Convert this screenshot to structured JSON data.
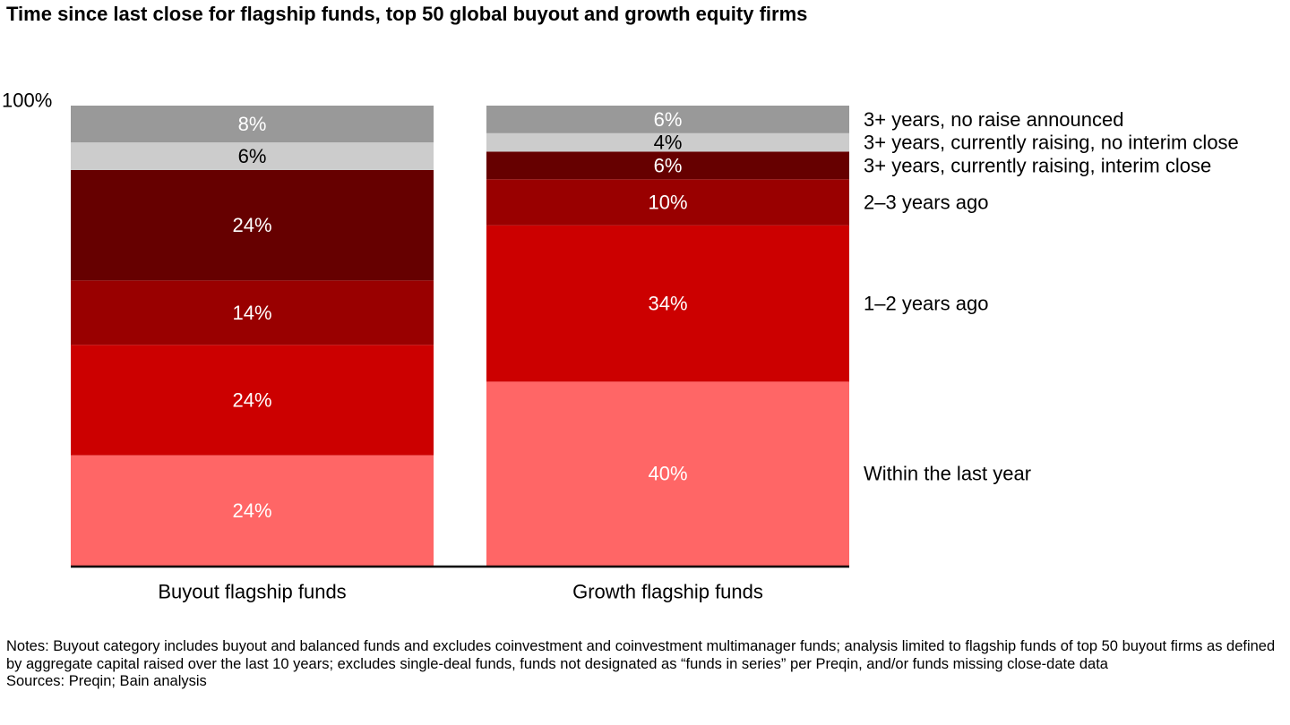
{
  "title": "Time since last close for flagship funds, top 50 global buyout and growth equity firms",
  "chart_data": {
    "type": "bar",
    "stacked": true,
    "percent": true,
    "ylim": [
      0,
      100
    ],
    "y_tick_labels": [
      "100%"
    ],
    "categories": [
      "Buyout flagship funds",
      "Growth flagship funds"
    ],
    "series": [
      {
        "name": "Within the last year",
        "values": [
          24,
          40
        ],
        "labels": [
          "24%",
          "40%"
        ],
        "color": "#ff6666",
        "label_color": "#ffffff"
      },
      {
        "name": "1–2 years ago",
        "values": [
          24,
          34
        ],
        "labels": [
          "24%",
          "34%"
        ],
        "color": "#cc0000",
        "label_color": "#ffffff"
      },
      {
        "name": "2–3 years ago",
        "values": [
          14,
          10
        ],
        "labels": [
          "14%",
          "10%"
        ],
        "color": "#990000",
        "label_color": "#ffffff"
      },
      {
        "name": "3+ years, currently raising, interim close",
        "values": [
          24,
          6
        ],
        "labels": [
          "24%",
          "6%"
        ],
        "color": "#660000",
        "label_color": "#ffffff"
      },
      {
        "name": "3+ years, currently raising, no interim close",
        "values": [
          6,
          4
        ],
        "labels": [
          "6%",
          "4%"
        ],
        "color": "#cccccc",
        "label_color": "#000000"
      },
      {
        "name": "3+ years, no raise announced",
        "values": [
          8,
          6
        ],
        "labels": [
          "8%",
          "6%"
        ],
        "color": "#999999",
        "label_color": "#ffffff"
      }
    ],
    "legend_position": "right"
  },
  "notes": [
    "Notes: Buyout category includes buyout and balanced funds and excludes coinvestment and coinvestment multimanager funds; analysis limited to flagship funds of top 50 buyout firms as defined by aggregate capital raised over the last 10 years; excludes single-deal funds, funds not designated as “funds in series” per Preqin, and/or funds missing close-date data",
    "Sources: Preqin; Bain analysis"
  ]
}
